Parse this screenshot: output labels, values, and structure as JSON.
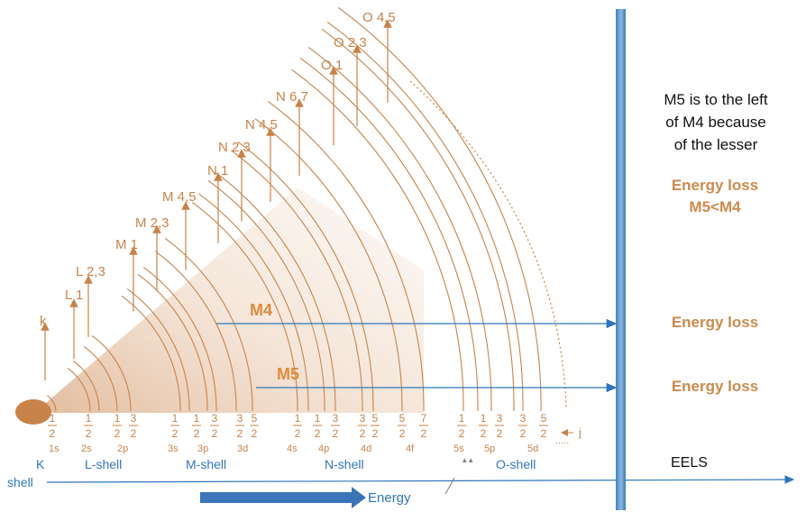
{
  "levels": [
    "k",
    "L 1",
    "L 2,3",
    "M 1",
    "M 2,3",
    "M 4,5",
    "N 1",
    "N 2,3",
    "N 4,5",
    "N 6,7",
    "O 1",
    "O 2,3",
    "O 4,5"
  ],
  "fractions": [
    {
      "num": "1",
      "den": "2"
    },
    {
      "num": "1",
      "den": "2"
    },
    {
      "num": "1",
      "den": "2"
    },
    {
      "num": "3",
      "den": "2"
    },
    {
      "num": "1",
      "den": "2"
    },
    {
      "num": "1",
      "den": "2"
    },
    {
      "num": "3",
      "den": "2"
    },
    {
      "num": "3",
      "den": "2"
    },
    {
      "num": "5",
      "den": "2"
    },
    {
      "num": "1",
      "den": "2"
    },
    {
      "num": "1",
      "den": "2"
    },
    {
      "num": "3",
      "den": "2"
    },
    {
      "num": "3",
      "den": "2"
    },
    {
      "num": "5",
      "den": "2"
    },
    {
      "num": "5",
      "den": "2"
    },
    {
      "num": "7",
      "den": "2"
    },
    {
      "num": "1",
      "den": "2"
    },
    {
      "num": "1",
      "den": "2"
    },
    {
      "num": "3",
      "den": "2"
    },
    {
      "num": "3",
      "den": "2"
    },
    {
      "num": "5",
      "den": "2"
    }
  ],
  "orbitals": [
    "1s",
    "2s",
    "2p",
    "3s",
    "3p",
    "3d",
    "4s",
    "4p",
    "4d",
    "4f",
    "5s",
    "5p",
    "5d"
  ],
  "j_label": "j",
  "shells": {
    "k": "K",
    "l": "L-shell",
    "m": "M-shell",
    "n": "N-shell",
    "o": "O-shell",
    "shell": "shell"
  },
  "arrow_labels": {
    "m4": "M4",
    "m5": "M5"
  },
  "eels_label": "EELS",
  "energy_label": "Energy",
  "note": {
    "line1": "M5 is to the left",
    "line2": "of M4 because",
    "line3": "of the lesser"
  },
  "energy_loss_compare": {
    "line1": "Energy loss",
    "line2": "M5<M4"
  },
  "energy_loss_m4": "Energy loss",
  "energy_loss_m5": "Energy loss",
  "colors": {
    "orange": "#c8834a",
    "blue": "#2f76b9",
    "detector": "#5b95c8"
  }
}
